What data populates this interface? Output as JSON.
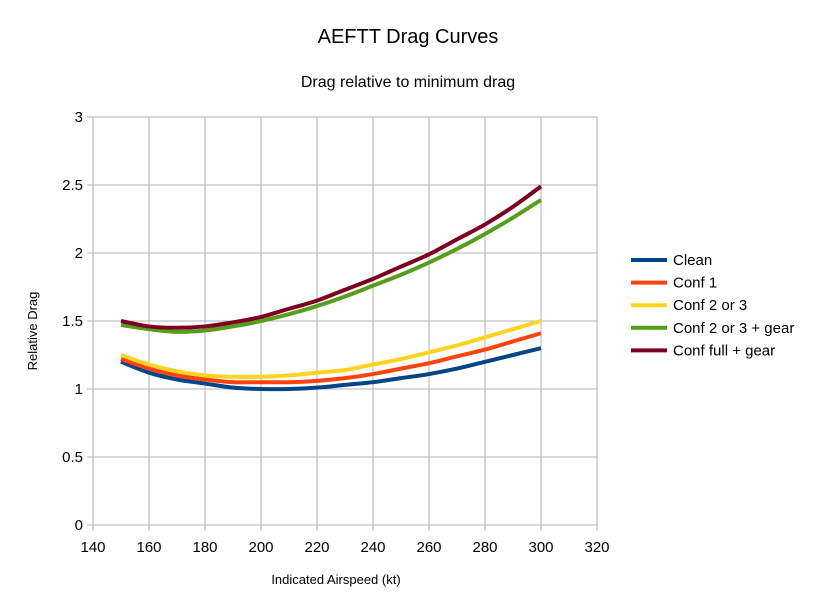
{
  "chart_data": {
    "type": "line",
    "title": "AEFTT Drag Curves",
    "subtitle": "Drag relative to minimum drag",
    "xlabel": "Indicated Airspeed (kt)",
    "ylabel": "Relative Drag",
    "xlim": [
      140,
      320
    ],
    "ylim": [
      0,
      3
    ],
    "xticks": [
      "140",
      "160",
      "180",
      "200",
      "220",
      "240",
      "260",
      "280",
      "300",
      "320"
    ],
    "yticks": [
      "0",
      "0.5",
      "1",
      "1.5",
      "2",
      "2.5",
      "3"
    ],
    "grid": true,
    "legend": "right",
    "x": [
      150,
      160,
      170,
      180,
      190,
      200,
      210,
      220,
      230,
      240,
      250,
      260,
      270,
      280,
      290,
      300
    ],
    "series": [
      {
        "name": "Clean",
        "color": "#004586",
        "values": [
          1.2,
          1.12,
          1.07,
          1.04,
          1.01,
          1.0,
          1.0,
          1.01,
          1.03,
          1.05,
          1.08,
          1.11,
          1.15,
          1.2,
          1.25,
          1.3
        ]
      },
      {
        "name": "Conf 1",
        "color": "#ff420e",
        "values": [
          1.22,
          1.15,
          1.1,
          1.07,
          1.05,
          1.05,
          1.05,
          1.06,
          1.08,
          1.11,
          1.15,
          1.19,
          1.24,
          1.29,
          1.35,
          1.41
        ]
      },
      {
        "name": "Conf 2 or 3",
        "color": "#ffd320",
        "values": [
          1.25,
          1.18,
          1.13,
          1.1,
          1.09,
          1.09,
          1.1,
          1.12,
          1.14,
          1.18,
          1.22,
          1.27,
          1.32,
          1.38,
          1.44,
          1.5
        ]
      },
      {
        "name": "Conf 2 or 3 + gear",
        "color": "#579d1c",
        "values": [
          1.47,
          1.44,
          1.42,
          1.43,
          1.46,
          1.5,
          1.55,
          1.61,
          1.68,
          1.76,
          1.84,
          1.93,
          2.03,
          2.14,
          2.26,
          2.39
        ]
      },
      {
        "name": "Conf full + gear",
        "color": "#7e0021",
        "values": [
          1.5,
          1.46,
          1.45,
          1.46,
          1.49,
          1.53,
          1.59,
          1.65,
          1.73,
          1.81,
          1.9,
          1.99,
          2.1,
          2.21,
          2.34,
          2.49
        ]
      }
    ]
  }
}
